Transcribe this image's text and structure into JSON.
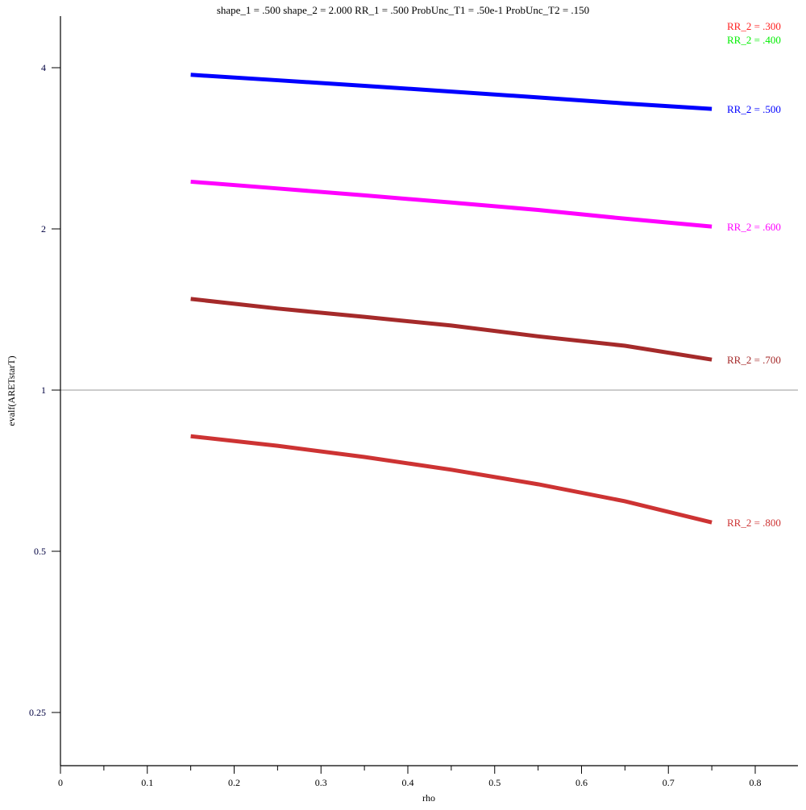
{
  "chart_data": {
    "type": "line",
    "title": "shape_1 = .500  shape_2 = 2.000  RR_1 = .500  ProbUnc_T1 = .50e-1  ProbUnc_T2 = .150",
    "xlabel": "rho",
    "ylabel": "evalf(ARETstarT)",
    "xlim": [
      0,
      0.849
    ],
    "ylim": [
      0.199,
      5.0
    ],
    "yscale": "log2",
    "x_ticks": [
      0,
      0.1,
      0.2,
      0.3,
      0.4,
      0.5,
      0.6,
      0.7,
      0.8
    ],
    "x_tick_labels": [
      "0",
      "0.1",
      "0.2",
      "0.3",
      "0.4",
      "0.5",
      "0.6",
      "0.7",
      "0.8"
    ],
    "y_ticks": [
      4,
      2,
      1,
      0.5,
      0.25
    ],
    "y_tick_labels": [
      "4",
      "2",
      "1",
      "0.5",
      "0.25"
    ],
    "reference_line": 1,
    "grid": false,
    "x": [
      0.15,
      0.25,
      0.35,
      0.45,
      0.55,
      0.65,
      0.75
    ],
    "series": [
      {
        "name": "RR_2 = .500",
        "color": "#0000ff",
        "values": [
          3.88,
          3.79,
          3.7,
          3.61,
          3.52,
          3.43,
          3.35
        ]
      },
      {
        "name": "RR_2 = .600",
        "color": "#ff00ff",
        "values": [
          2.45,
          2.38,
          2.31,
          2.24,
          2.17,
          2.09,
          2.02
        ]
      },
      {
        "name": "RR_2 = .700",
        "color": "#a52a2a",
        "values": [
          1.48,
          1.42,
          1.37,
          1.32,
          1.26,
          1.21,
          1.14
        ]
      },
      {
        "name": "RR_2 = .800",
        "color": "#cd3333",
        "values": [
          0.82,
          0.787,
          0.75,
          0.71,
          0.667,
          0.62,
          0.566
        ]
      }
    ],
    "offscale_labels": [
      {
        "name": "RR_2 = .300",
        "color": "#ff2020"
      },
      {
        "name": "RR_2 = .400",
        "color": "#00ee00"
      }
    ]
  }
}
